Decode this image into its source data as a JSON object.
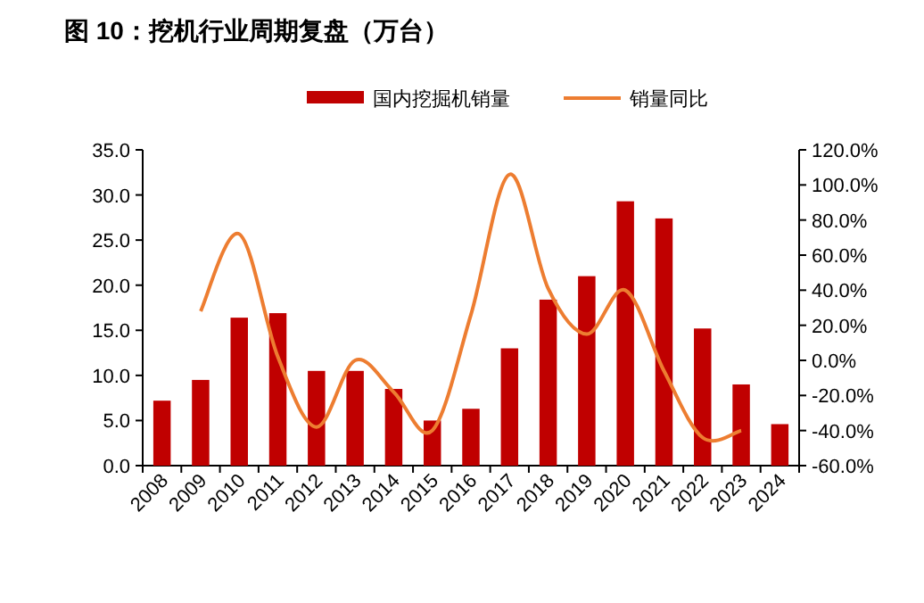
{
  "chart_data": {
    "type": "bar",
    "title": "图 10：挖机行业周期复盘（万台）",
    "categories": [
      "2008",
      "2009",
      "2010",
      "2011",
      "2012",
      "2013",
      "2014",
      "2015",
      "2016",
      "2017",
      "2018",
      "2019",
      "2020",
      "2021",
      "2022",
      "2023",
      "2024"
    ],
    "series": [
      {
        "name": "国内挖掘机销量",
        "color": "#c00000",
        "values": [
          7.2,
          9.5,
          16.4,
          16.9,
          10.5,
          10.5,
          8.5,
          5.0,
          6.3,
          13.0,
          18.4,
          21.0,
          29.3,
          27.4,
          15.2,
          9.0,
          4.6
        ]
      },
      {
        "name": "销量同比",
        "type": "line",
        "axis": "y2",
        "color": "#ed7d31",
        "values": [
          null,
          28,
          72,
          2,
          -38,
          0,
          -18,
          -40,
          26,
          106,
          41,
          15,
          40,
          -6,
          -44,
          -40,
          null
        ]
      }
    ],
    "ylim": [
      0,
      35
    ],
    "yticks": [
      {
        "value": 0,
        "label": "0.0"
      },
      {
        "value": 5,
        "label": "5.0"
      },
      {
        "value": 10,
        "label": "10.0"
      },
      {
        "value": 15,
        "label": "15.0"
      },
      {
        "value": 20,
        "label": "20.0"
      },
      {
        "value": 25,
        "label": "25.0"
      },
      {
        "value": 30,
        "label": "30.0"
      },
      {
        "value": 35,
        "label": "35.0"
      }
    ],
    "y2lim": [
      -60,
      120
    ],
    "y2ticks": [
      {
        "value": -60,
        "label": "-60.0%"
      },
      {
        "value": -40,
        "label": "-40.0%"
      },
      {
        "value": -20,
        "label": "-20.0%"
      },
      {
        "value": 0,
        "label": "0.0%"
      },
      {
        "value": 20,
        "label": "20.0%"
      },
      {
        "value": 40,
        "label": "40.0%"
      },
      {
        "value": 60,
        "label": "60.0%"
      },
      {
        "value": 80,
        "label": "80.0%"
      },
      {
        "value": 100,
        "label": "100.0%"
      },
      {
        "value": 120,
        "label": "120.0%"
      }
    ],
    "legend": "top",
    "grid": false,
    "marker": "none",
    "line_style": "solid"
  }
}
